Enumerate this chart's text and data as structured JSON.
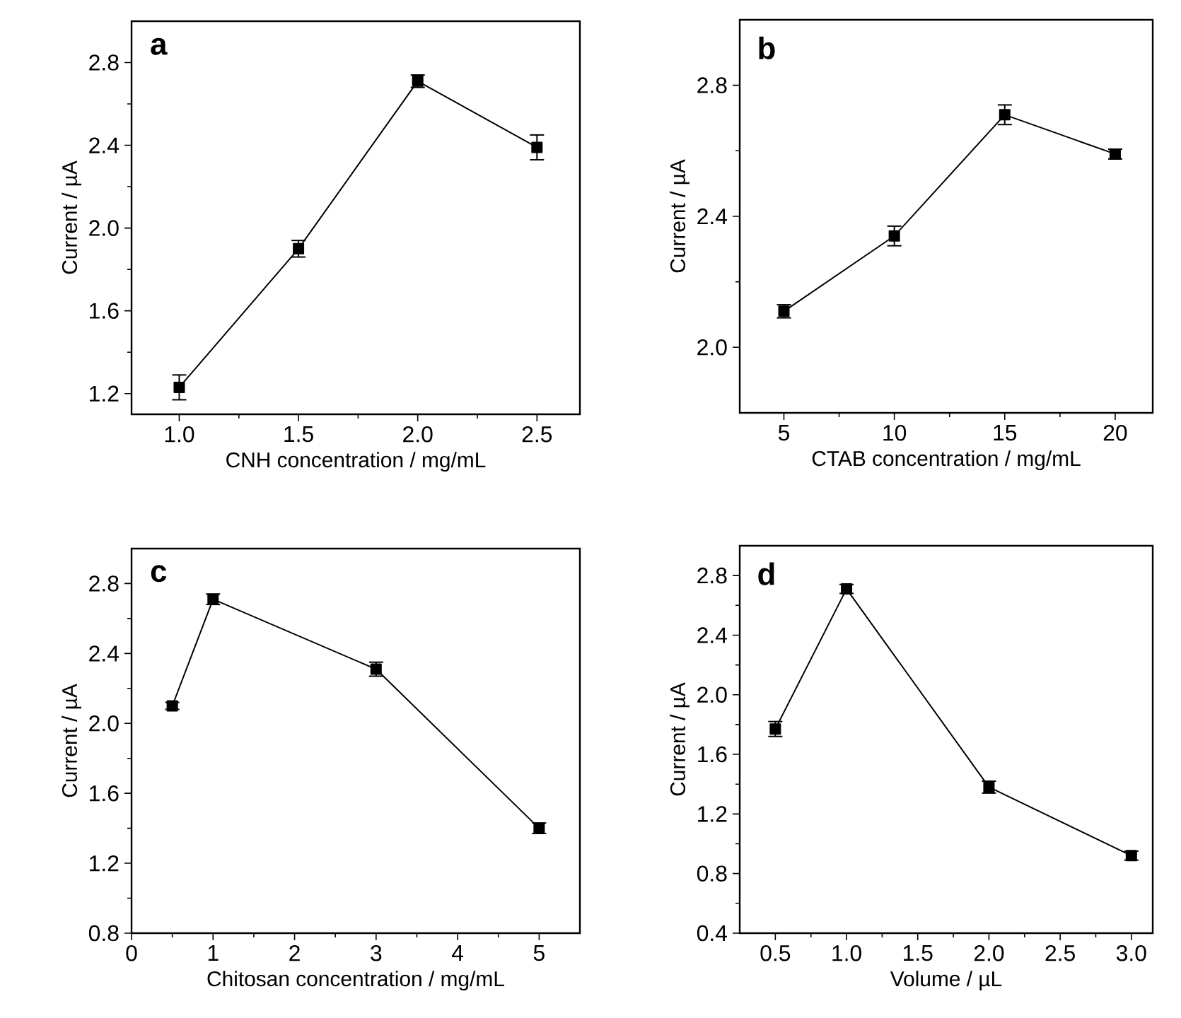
{
  "chart_data": [
    {
      "type": "line",
      "annotations": [
        "a"
      ],
      "xlabel": "CNH concentration  / mg/mL",
      "ylabel": "Current / µA",
      "marker": "square",
      "line_style": "solid",
      "color": "#000000",
      "x": [
        1.0,
        1.5,
        2.0,
        2.5
      ],
      "values": [
        1.23,
        1.9,
        2.71,
        2.39
      ],
      "errors": [
        0.06,
        0.04,
        0.03,
        0.06
      ],
      "xlim": [
        0.8,
        2.68
      ],
      "ylim": [
        1.1,
        3.0
      ],
      "xticks": [
        {
          "value": 1.0,
          "label": "1.0"
        },
        {
          "value": 1.5,
          "label": "1.5"
        },
        {
          "value": 2.0,
          "label": "2.0"
        },
        {
          "value": 2.5,
          "label": "2.5"
        }
      ],
      "yticks": [
        {
          "value": 1.2,
          "label": "1.2"
        },
        {
          "value": 1.6,
          "label": "1.6"
        },
        {
          "value": 2.0,
          "label": "2.0"
        },
        {
          "value": 2.4,
          "label": "2.4"
        },
        {
          "value": 2.8,
          "label": "2.8"
        }
      ]
    },
    {
      "type": "line",
      "annotations": [
        "b"
      ],
      "xlabel": "CTAB concentration  / mg/mL",
      "ylabel": "Current / µA",
      "marker": "square",
      "line_style": "solid",
      "color": "#000000",
      "x": [
        5,
        10,
        15,
        20
      ],
      "values": [
        2.11,
        2.34,
        2.71,
        2.59
      ],
      "errors": [
        0.02,
        0.03,
        0.03,
        0.015
      ],
      "xlim": [
        3,
        21.7
      ],
      "ylim": [
        1.8,
        3.0
      ],
      "xticks": [
        5,
        10,
        15,
        20
      ],
      "yticks": [
        {
          "value": 2.0,
          "label": "2.0"
        },
        {
          "value": 2.4,
          "label": "2.4"
        },
        {
          "value": 2.8,
          "label": "2.8"
        }
      ]
    },
    {
      "type": "line",
      "annotations": [
        "c"
      ],
      "xlabel": "Chitosan concentration  / mg/mL",
      "ylabel": "Current / µA",
      "marker": "square",
      "line_style": "solid",
      "color": "#000000",
      "x": [
        0.5,
        1,
        3,
        5
      ],
      "values": [
        2.1,
        2.71,
        2.31,
        1.4
      ],
      "errors": [
        0.02,
        0.03,
        0.04,
        0.03
      ],
      "xlim": [
        0,
        5.5
      ],
      "ylim": [
        0.8,
        3.0
      ],
      "xticks": [
        0,
        1,
        2,
        3,
        4,
        5
      ],
      "yticks": [
        {
          "value": 0.8,
          "label": "0.8"
        },
        {
          "value": 1.2,
          "label": "1.2"
        },
        {
          "value": 1.6,
          "label": "1.6"
        },
        {
          "value": 2.0,
          "label": "2.0"
        },
        {
          "value": 2.4,
          "label": "2.4"
        },
        {
          "value": 2.8,
          "label": "2.8"
        }
      ]
    },
    {
      "type": "line",
      "annotations": [
        "d"
      ],
      "xlabel": "Volume / µL",
      "ylabel": "Current / µA",
      "marker": "square",
      "line_style": "solid",
      "color": "#000000",
      "x": [
        0.5,
        1.0,
        2.0,
        3.0
      ],
      "values": [
        1.77,
        2.71,
        1.38,
        0.92
      ],
      "errors": [
        0.05,
        0.03,
        0.04,
        0.03
      ],
      "xlim": [
        0.25,
        3.15
      ],
      "ylim": [
        0.4,
        3.0
      ],
      "xticks": [
        {
          "value": 0.5,
          "label": "0.5"
        },
        {
          "value": 1.0,
          "label": "1.0"
        },
        {
          "value": 1.5,
          "label": "1.5"
        },
        {
          "value": 2.0,
          "label": "2.0"
        },
        {
          "value": 2.5,
          "label": "2.5"
        },
        {
          "value": 3.0,
          "label": "3.0"
        }
      ],
      "yticks": [
        {
          "value": 0.4,
          "label": "0.4"
        },
        {
          "value": 0.8,
          "label": "0.8"
        },
        {
          "value": 1.2,
          "label": "1.2"
        },
        {
          "value": 1.6,
          "label": "1.6"
        },
        {
          "value": 2.0,
          "label": "2.0"
        },
        {
          "value": 2.4,
          "label": "2.4"
        },
        {
          "value": 2.8,
          "label": "2.8"
        }
      ]
    }
  ]
}
